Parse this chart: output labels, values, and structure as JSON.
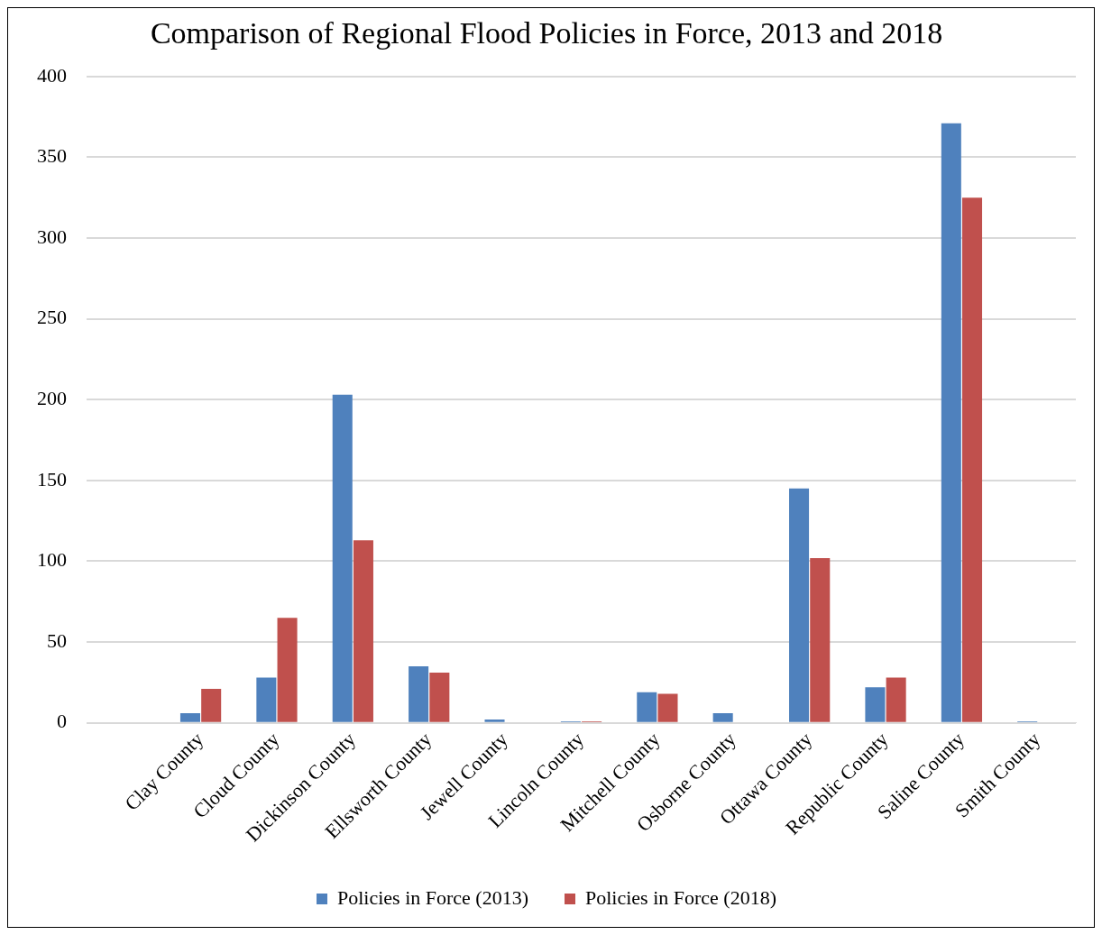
{
  "chart_data": {
    "type": "bar",
    "title": "Comparison of Regional Flood Policies in Force, 2013 and 2018",
    "categories": [
      null,
      "Clay County",
      "Cloud County",
      "Dickinson County",
      "Ellsworth County",
      "Jewell County",
      "Lincoln County",
      "Mitchell County",
      "Osborne County",
      "Ottawa County",
      "Republic County",
      "Saline County",
      "Smith County"
    ],
    "series": [
      {
        "name": "Policies in Force (2013)",
        "color": "#4f81bd",
        "values": [
          null,
          6,
          28,
          203,
          35,
          2,
          1,
          19,
          6,
          145,
          22,
          371,
          1
        ]
      },
      {
        "name": "Policies in Force (2018)",
        "color": "#c0504d",
        "values": [
          null,
          21,
          65,
          113,
          31,
          0,
          1,
          18,
          0,
          102,
          28,
          325,
          0
        ]
      }
    ],
    "ylim": [
      0,
      400
    ],
    "yticks": [
      0,
      50,
      100,
      150,
      200,
      250,
      300,
      350,
      400
    ],
    "grid": "y",
    "legend": "bottom"
  }
}
